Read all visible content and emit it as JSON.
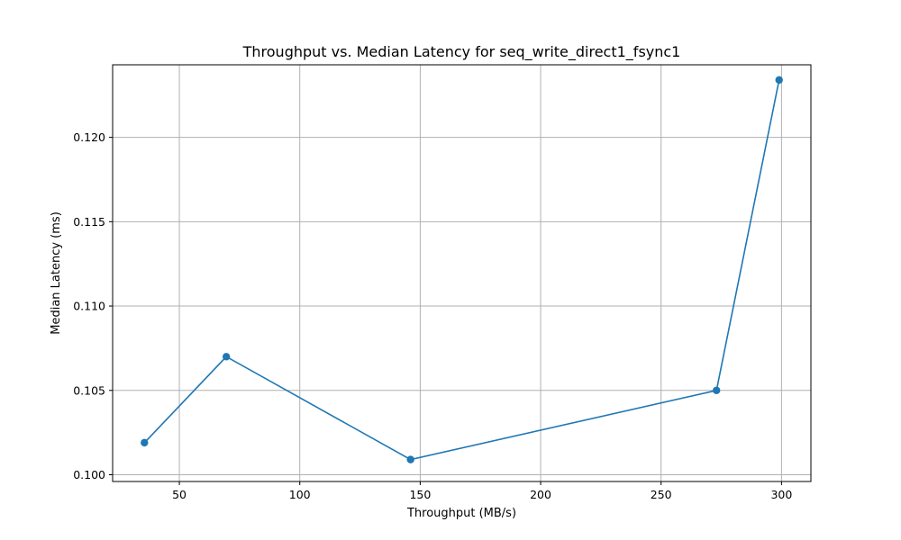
{
  "chart_data": {
    "type": "line",
    "title": "Throughput vs. Median Latency for seq_write_direct1_fsync1",
    "xlabel": "Throughput (MB/s)",
    "ylabel": "Median Latency (ms)",
    "x": [
      35.5,
      69.5,
      146.0,
      273.0,
      299.0
    ],
    "series": [
      {
        "values": [
          0.1019,
          0.107,
          0.1009,
          0.105,
          0.1234
        ]
      }
    ],
    "xlim": [
      22.3,
      312.2
    ],
    "ylim": [
      0.0996,
      0.1243
    ],
    "xticks": [
      50,
      100,
      150,
      200,
      250,
      300
    ],
    "yticks": [
      0.1,
      0.105,
      0.11,
      0.115,
      0.12
    ],
    "xtick_labels": [
      "50",
      "100",
      "150",
      "200",
      "250",
      "300"
    ],
    "ytick_labels": [
      "0.100",
      "0.105",
      "0.110",
      "0.115",
      "0.120"
    ],
    "grid": true,
    "marker": "circle",
    "line_color": "#1f77b4"
  }
}
